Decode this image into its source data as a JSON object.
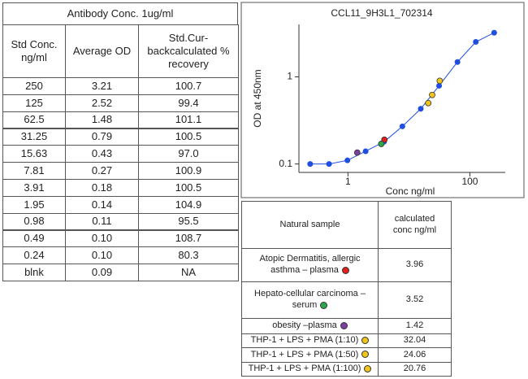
{
  "standard_table": {
    "title": "Antibody Conc. 1ug/ml",
    "headers": [
      "Std Conc.\nng/ml",
      "Average OD",
      "Std.Cur-\nbackcalculated %\nrecovery"
    ],
    "rows": [
      [
        "250",
        "3.21",
        "100.7"
      ],
      [
        "125",
        "2.52",
        "99.4"
      ],
      [
        "62.5",
        "1.48",
        "101.1"
      ],
      [
        "31.25",
        "0.79",
        "100.5"
      ],
      [
        "15.63",
        "0.43",
        "97.0"
      ],
      [
        "7.81",
        "0.27",
        "100.9"
      ],
      [
        "3.91",
        "0.18",
        "100.5"
      ],
      [
        "1.95",
        "0.14",
        "104.9"
      ],
      [
        "0.98",
        "0.11",
        "95.5"
      ],
      [
        "0.49",
        "0.10",
        "108.7"
      ],
      [
        "0.24",
        "0.10",
        "80.3"
      ],
      [
        "blnk",
        "0.09",
        "NA"
      ]
    ]
  },
  "chart_data": {
    "type": "scatter",
    "title": "CCL11_9H3L1_702314",
    "x_label": "Conc ng/ml",
    "y_label": "OD at 450nm",
    "log_x": true,
    "log_y": true,
    "xlim": [
      0.157,
      380
    ],
    "ylim": [
      0.08,
      4
    ],
    "xticks": [
      1,
      100
    ],
    "yticks": [
      0.1,
      1
    ],
    "series": [
      {
        "color": "#1f4fe0",
        "line": true,
        "x": [
          250,
          125,
          62.5,
          31.25,
          15.63,
          7.81,
          3.91,
          1.95,
          0.98,
          0.49,
          0.24
        ],
        "values": [
          3.21,
          2.52,
          1.48,
          0.79,
          0.43,
          0.27,
          0.18,
          0.14,
          0.11,
          0.1,
          0.1
        ]
      },
      {
        "colors": [
          "#e0201c",
          "#2aa84a",
          "#7b3fa0",
          "#f0c419",
          "#f0c419",
          "#f0c419"
        ],
        "line": false,
        "x": [
          3.96,
          3.52,
          1.42,
          32.04,
          24.06,
          20.76
        ],
        "values": [
          0.19,
          0.17,
          0.135,
          0.9,
          0.62,
          0.5
        ]
      }
    ]
  },
  "sample_table": {
    "headers": [
      "Natural sample",
      "calculated\nconc ng/ml"
    ],
    "rows": [
      [
        "Atopic Dermatitis, allergic\nasthma – plasma",
        "3.96"
      ],
      [
        "Hepato-cellular carcinoma –\nserum",
        "3.52"
      ],
      [
        "obesity –plasma",
        "1.42"
      ],
      [
        "THP-1 + LPS + PMA (1:10)",
        "32.04"
      ],
      [
        "THP-1 + LPS + PMA (1:50)",
        "24.06"
      ],
      [
        "THP-1 + LPS + PMA (1:100)",
        "20.76"
      ]
    ]
  }
}
